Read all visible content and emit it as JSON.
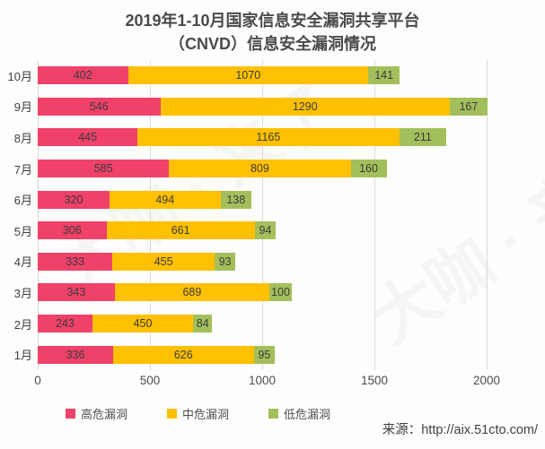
{
  "title": {
    "line1": "2019年1-10月国家信息安全漏洞共享平台",
    "line2": "（CNVD）信息安全漏洞情况"
  },
  "chart_data": {
    "type": "bar",
    "orientation": "horizontal",
    "stacked": true,
    "categories": [
      "10月",
      "9月",
      "8月",
      "7月",
      "6月",
      "5月",
      "4月",
      "3月",
      "2月",
      "1月"
    ],
    "series": [
      {
        "name": "高危漏洞",
        "color": "#F04169",
        "values": [
          402,
          546,
          445,
          585,
          320,
          306,
          333,
          343,
          243,
          336
        ]
      },
      {
        "name": "中危漏洞",
        "color": "#FFC000",
        "values": [
          1070,
          1290,
          1165,
          809,
          494,
          661,
          455,
          689,
          450,
          626
        ]
      },
      {
        "name": "低危漏洞",
        "color": "#A3BF5B",
        "values": [
          141,
          167,
          211,
          160,
          138,
          94,
          93,
          100,
          84,
          95
        ]
      }
    ],
    "x_ticks": [
      0,
      500,
      1000,
      1500,
      2000
    ],
    "xlim": [
      0,
      2260
    ],
    "grid": "vertical",
    "legend_position": "bottom",
    "value_labels": "inside-center"
  },
  "source": "来源：http://aix.51cto.com/",
  "watermark": "大咖 · 来了"
}
